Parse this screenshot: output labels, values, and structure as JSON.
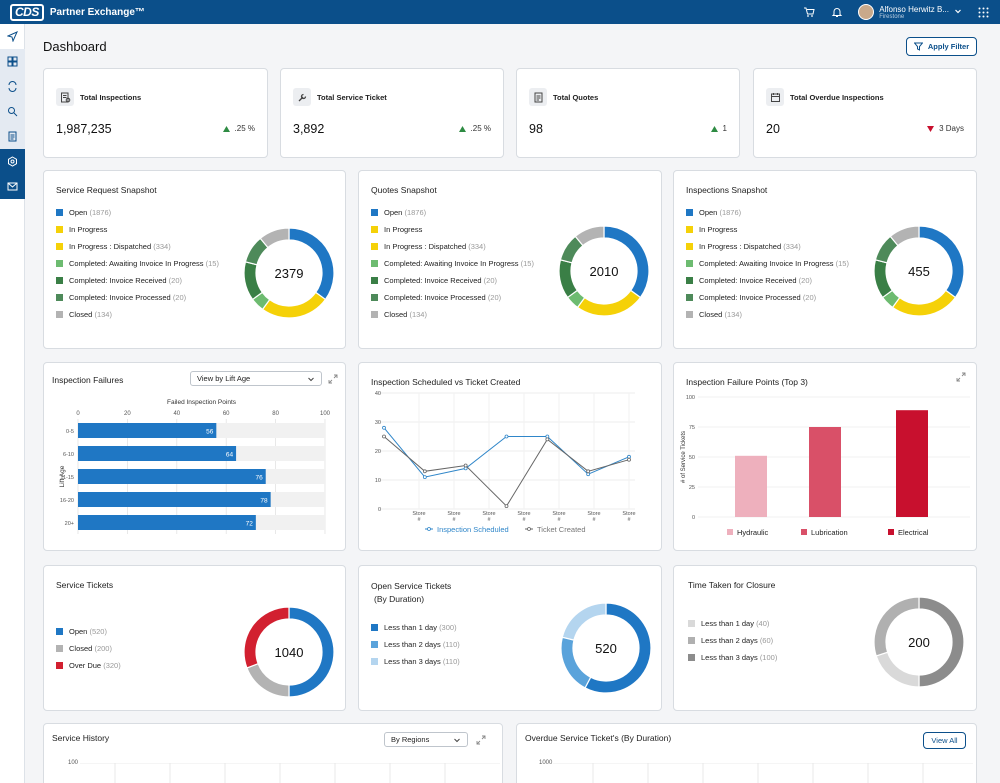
{
  "app": {
    "logo": "CDS",
    "title": "Partner Exchange™"
  },
  "user": {
    "name": "Alfonso Herwitz B...",
    "org": "Firestone"
  },
  "page": {
    "title": "Dashboard",
    "apply_filter": "Apply Filter"
  },
  "kpis": [
    {
      "title": "Total Inspections",
      "value": "1,987,235",
      "delta": ".25 %",
      "direction": "up"
    },
    {
      "title": "Total Service Ticket",
      "value": "3,892",
      "delta": ".25 %",
      "direction": "up"
    },
    {
      "title": "Total Quotes",
      "value": "98",
      "delta": "1",
      "direction": "up"
    },
    {
      "title": "Total Overdue Inspections",
      "value": "20",
      "delta": "3 Days",
      "direction": "down"
    }
  ],
  "snapshot_legend": [
    {
      "label": "Open",
      "count": "(1876)",
      "color": "#1f77c4"
    },
    {
      "label": "In Progress",
      "count": "",
      "color": "#f5d108"
    },
    {
      "label": "In Progress : Dispatched",
      "count": "(334)",
      "color": "#f5d108"
    },
    {
      "label": "Completed: Awaiting Invoice In Progress",
      "count": "(15)",
      "color": "#6dbb70"
    },
    {
      "label": "Completed: Invoice Received",
      "count": "(20)",
      "color": "#3a7f46"
    },
    {
      "label": "Completed: Invoice Processed",
      "count": "(20)",
      "color": "#4e8a5a"
    },
    {
      "label": "Closed",
      "count": "(134)",
      "color": "#b3b3b3"
    }
  ],
  "snapshots": [
    {
      "title": "Service Request Snapshot",
      "total": "2379"
    },
    {
      "title": "Quotes Snapshot",
      "total": "2010"
    },
    {
      "title": "Inspections Snapshot",
      "total": "455"
    }
  ],
  "snapshot_donut": {
    "values": [
      35,
      25,
      5,
      14,
      10,
      11
    ],
    "colors": [
      "#1f77c4",
      "#f5d108",
      "#6dbb70",
      "#3a7f46",
      "#4e8a5a",
      "#b3b3b3"
    ]
  },
  "inspection_failures": {
    "title": "Inspection Failures",
    "dropdown": "View by Lift Age",
    "chart_data": {
      "type": "bar",
      "orientation": "horizontal",
      "title": "Failed Inspection Points",
      "ylabel": "Lift Age",
      "categories": [
        "0-5",
        "6-10",
        "11-15",
        "16-20",
        "20+"
      ],
      "values": [
        56,
        64,
        76,
        78,
        72
      ],
      "xlim": [
        0,
        100
      ],
      "xticks": [
        0,
        20,
        40,
        60,
        80,
        100
      ],
      "color": "#1f77c4"
    }
  },
  "scheduled_vs_created": {
    "title": "Inspection Scheduled vs Ticket Created",
    "chart_data": {
      "type": "line",
      "categories": [
        "Store #",
        "Store #",
        "Store #",
        "Store #",
        "Store #",
        "Store #",
        "Store #"
      ],
      "ylim": [
        0,
        40
      ],
      "yticks": [
        0,
        10,
        20,
        30,
        40
      ],
      "series": [
        {
          "name": "Inspection Scheduled",
          "color": "#2f86c9",
          "values": [
            28,
            11,
            14,
            25,
            25,
            12,
            18
          ]
        },
        {
          "name": "Ticket Created",
          "color": "#666666",
          "values": [
            25,
            13,
            15,
            1,
            24,
            13,
            17
          ]
        }
      ]
    }
  },
  "failure_points": {
    "title": "Inspection Failure Points (Top 3)",
    "chart_data": {
      "type": "bar",
      "ylabel": "# of Service Tickets",
      "ylim": [
        0,
        100
      ],
      "yticks": [
        0,
        25,
        50,
        75,
        100
      ],
      "categories": [
        "Hydraulic",
        "Lubrication",
        "Electrical"
      ],
      "values": [
        51,
        75,
        89
      ],
      "colors": [
        "#eeb0bd",
        "#d95068",
        "#c8102e"
      ]
    }
  },
  "service_tickets": {
    "title": "Service Tickets",
    "total": "1040",
    "legend": [
      {
        "label": "Open",
        "count": "(520)",
        "color": "#1f77c4",
        "value": 520
      },
      {
        "label": "Closed",
        "count": "(200)",
        "color": "#b3b3b3",
        "value": 200
      },
      {
        "label": "Over Due",
        "count": "(320)",
        "color": "#d22030",
        "value": 320
      }
    ]
  },
  "open_service_tickets": {
    "title": "Open Service Tickets",
    "subtitle": "(By Duration)",
    "total": "520",
    "legend": [
      {
        "label": "Less than 1 day",
        "count": "(300)",
        "color": "#1f77c4",
        "value": 300
      },
      {
        "label": "Less than 2 days",
        "count": "(110)",
        "color": "#5aa3db",
        "value": 110
      },
      {
        "label": "Less than 3 days",
        "count": "(110)",
        "color": "#b4d5ef",
        "value": 110
      }
    ]
  },
  "time_taken": {
    "title": "Time Taken for Closure",
    "total": "200",
    "legend": [
      {
        "label": "Less than 1 day",
        "count": "(40)",
        "color": "#d9d9d9",
        "value": 40
      },
      {
        "label": "Less than 2 days",
        "count": "(60)",
        "color": "#b0b0b0",
        "value": 60
      },
      {
        "label": "Less than 3 days",
        "count": "(100)",
        "color": "#8c8c8c",
        "value": 100
      }
    ]
  },
  "service_history": {
    "title": "Service History",
    "dropdown": "By Regions",
    "ytop": "100"
  },
  "overdue_tickets": {
    "title": "Overdue Service Ticket's (By Duration)",
    "view_all": "View All",
    "ytop": "1000"
  }
}
